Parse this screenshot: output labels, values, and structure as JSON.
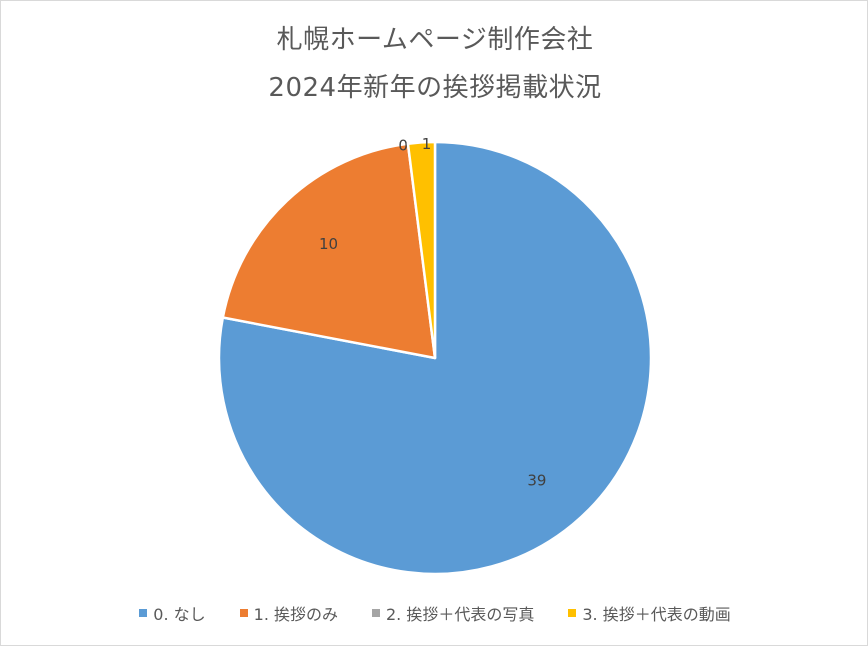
{
  "chart_data": {
    "type": "pie",
    "title": "札幌ホームページ制作会社",
    "subtitle": "2024年新年の挨拶掲載状況",
    "categories": [
      "0. なし",
      "1. 挨拶のみ",
      "2. 挨拶＋代表の写真",
      "3. 挨拶＋代表の動画"
    ],
    "values": [
      39,
      10,
      0,
      1
    ],
    "colors": [
      "#5B9BD5",
      "#ED7D31",
      "#A5A5A5",
      "#FFC000"
    ],
    "data_labels": [
      "39",
      "10",
      "0",
      "1"
    ],
    "legend_position": "bottom"
  }
}
